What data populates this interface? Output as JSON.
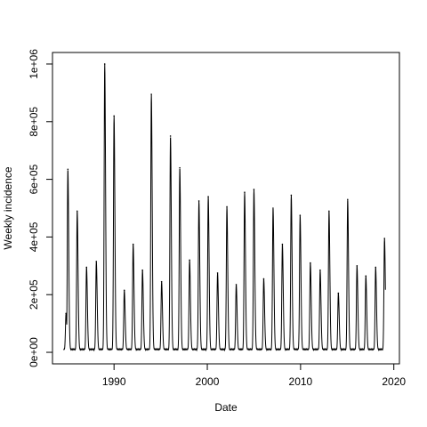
{
  "chart_data": {
    "type": "line",
    "title": "",
    "xlabel": "Date",
    "ylabel": "Weekly incidence",
    "xlim": [
      1983.4,
      2020.6
    ],
    "ylim": [
      -40000,
      1040000
    ],
    "x_ticks": [
      1990,
      2000,
      2010,
      2020
    ],
    "x_tick_labels": [
      "1990",
      "2000",
      "2010",
      "2020"
    ],
    "y_ticks": [
      0,
      200000,
      400000,
      600000,
      800000,
      1000000
    ],
    "y_tick_labels": [
      "0e+00",
      "2e+05",
      "4e+05",
      "6e+05",
      "8e+05",
      "1e+06"
    ],
    "grid": false,
    "legend": "none",
    "line_color": "#000000",
    "baseline": 8000,
    "series_start": 1984.6,
    "series_end": 2019.1,
    "seasonal_peaks": [
      {
        "x": 1984.85,
        "y": 135000
      },
      {
        "x": 1985.05,
        "y": 635000
      },
      {
        "x": 1986.05,
        "y": 490000
      },
      {
        "x": 1987.05,
        "y": 295000
      },
      {
        "x": 1988.1,
        "y": 315000
      },
      {
        "x": 1989.0,
        "y": 1000000
      },
      {
        "x": 1990.0,
        "y": 820000
      },
      {
        "x": 1991.1,
        "y": 215000
      },
      {
        "x": 1992.05,
        "y": 375000
      },
      {
        "x": 1993.05,
        "y": 285000
      },
      {
        "x": 1994.0,
        "y": 895000
      },
      {
        "x": 1995.1,
        "y": 245000
      },
      {
        "x": 1996.05,
        "y": 750000
      },
      {
        "x": 1997.05,
        "y": 640000
      },
      {
        "x": 1998.1,
        "y": 320000
      },
      {
        "x": 1999.1,
        "y": 525000
      },
      {
        "x": 2000.1,
        "y": 540000
      },
      {
        "x": 2001.1,
        "y": 275000
      },
      {
        "x": 2002.1,
        "y": 505000
      },
      {
        "x": 2003.1,
        "y": 235000
      },
      {
        "x": 2004.0,
        "y": 555000
      },
      {
        "x": 2005.0,
        "y": 565000
      },
      {
        "x": 2006.05,
        "y": 255000
      },
      {
        "x": 2007.05,
        "y": 500000
      },
      {
        "x": 2008.05,
        "y": 375000
      },
      {
        "x": 2009.0,
        "y": 545000
      },
      {
        "x": 2009.95,
        "y": 475000
      },
      {
        "x": 2011.05,
        "y": 310000
      },
      {
        "x": 2012.1,
        "y": 285000
      },
      {
        "x": 2013.05,
        "y": 490000
      },
      {
        "x": 2014.05,
        "y": 205000
      },
      {
        "x": 2015.05,
        "y": 530000
      },
      {
        "x": 2016.05,
        "y": 300000
      },
      {
        "x": 2017.0,
        "y": 265000
      },
      {
        "x": 2018.05,
        "y": 295000
      },
      {
        "x": 2019.0,
        "y": 395000
      }
    ]
  }
}
